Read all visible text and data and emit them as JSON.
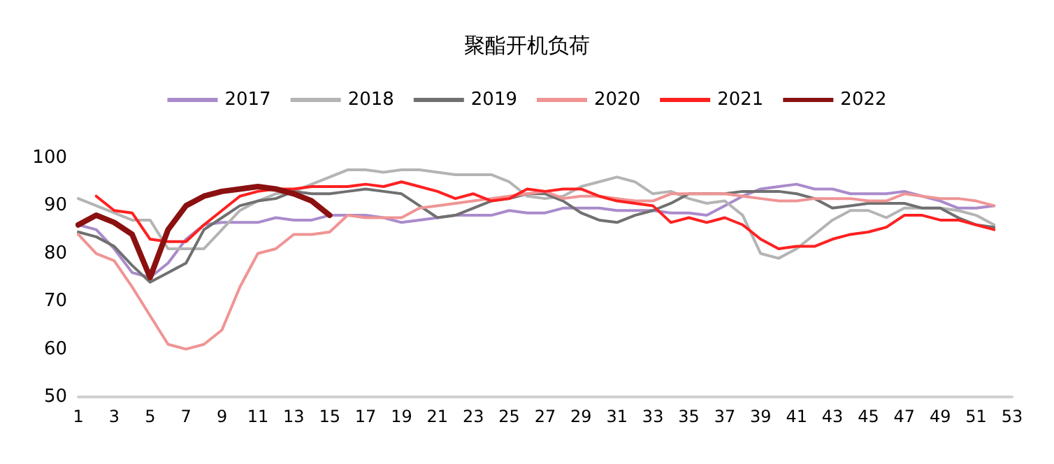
{
  "chart_data": {
    "type": "line",
    "title": "聚酯开机负荷",
    "legend": "top",
    "grid": false,
    "x": [
      1,
      2,
      3,
      4,
      5,
      6,
      7,
      8,
      9,
      10,
      11,
      12,
      13,
      14,
      15,
      16,
      17,
      18,
      19,
      20,
      21,
      22,
      23,
      24,
      25,
      26,
      27,
      28,
      29,
      30,
      31,
      32,
      33,
      34,
      35,
      36,
      37,
      38,
      39,
      40,
      41,
      42,
      43,
      44,
      45,
      46,
      47,
      48,
      49,
      50,
      51,
      52
    ],
    "xlim": [
      1,
      53
    ],
    "xticks": [
      1,
      3,
      5,
      7,
      9,
      11,
      13,
      15,
      17,
      19,
      21,
      23,
      25,
      27,
      29,
      31,
      33,
      35,
      37,
      39,
      41,
      43,
      45,
      47,
      49,
      51,
      53
    ],
    "ylim": [
      50,
      100
    ],
    "yticks": [
      50,
      60,
      70,
      80,
      90,
      100
    ],
    "series": [
      {
        "name": "2017",
        "color": "#a98bcb",
        "values": [
          86,
          85,
          81,
          76,
          75,
          78,
          83,
          86,
          86.5,
          86.5,
          86.5,
          87.5,
          87,
          87,
          88,
          88,
          88,
          87.5,
          86.5,
          87,
          87.5,
          88,
          88,
          88,
          89,
          88.5,
          88.5,
          89.5,
          89.5,
          89.5,
          89,
          89,
          89,
          88.5,
          88.5,
          88,
          90,
          92,
          93.5,
          94,
          94.5,
          93.5,
          93.5,
          92.5,
          92.5,
          92.5,
          93,
          92,
          91,
          89.5,
          89.5,
          90
        ]
      },
      {
        "name": "2018",
        "color": "#b4b4b4",
        "values": [
          91.5,
          90,
          88.5,
          87,
          87,
          81,
          81,
          81,
          85,
          89,
          91,
          92.5,
          93,
          94.5,
          96,
          97.5,
          97.5,
          97,
          97.5,
          97.5,
          97,
          96.5,
          96.5,
          96.5,
          95,
          92,
          91.5,
          92,
          94,
          95,
          96,
          95,
          92.5,
          93,
          91.5,
          90.5,
          91,
          88,
          80,
          79,
          81,
          84,
          87,
          89,
          89,
          87.5,
          89.5,
          89.5,
          89.5,
          89,
          88,
          86
        ]
      },
      {
        "name": "2019",
        "color": "#707070",
        "values": [
          84.5,
          83.5,
          81.5,
          77.5,
          74,
          76,
          78,
          85,
          87.5,
          90,
          91,
          91.5,
          93,
          92.5,
          92.5,
          93,
          93.5,
          93,
          92.5,
          90,
          87.5,
          88,
          89.5,
          91,
          91.5,
          92.5,
          92.5,
          91,
          88.5,
          87,
          86.5,
          88,
          89,
          90.5,
          92.5,
          92.5,
          92.5,
          93,
          93,
          93,
          92.5,
          91.5,
          89.5,
          90,
          90.5,
          90.5,
          90.5,
          89.5,
          89.5,
          87.5,
          86,
          85.5
        ]
      },
      {
        "name": "2020",
        "color": "#f09494",
        "values": [
          84,
          80,
          78.5,
          73,
          67,
          61,
          60,
          61,
          64,
          73,
          80,
          81,
          84,
          84,
          84.5,
          88,
          87.5,
          87.5,
          87.5,
          89.5,
          90,
          90.5,
          91,
          91.5,
          92,
          92.5,
          93,
          91.5,
          92,
          92,
          91.5,
          91,
          91,
          92.5,
          92.5,
          92.5,
          92.5,
          92,
          91.5,
          91,
          91,
          91.5,
          91.5,
          91.5,
          91,
          91,
          92.5,
          92,
          91.5,
          91.5,
          91,
          90
        ]
      },
      {
        "name": "2021",
        "color": "#ff2020",
        "values": [
          null,
          92,
          89,
          88.5,
          83,
          82.5,
          82.5,
          86,
          89,
          92,
          93,
          93.5,
          93.5,
          94,
          94,
          94,
          94.5,
          94,
          95,
          94,
          93,
          91.5,
          92.5,
          91,
          91.5,
          93.5,
          93,
          93.5,
          93.5,
          92,
          91,
          90.5,
          90,
          86.5,
          87.5,
          86.5,
          87.5,
          86,
          83,
          81,
          81.5,
          81.5,
          83,
          84,
          84.5,
          85.5,
          88,
          88,
          87,
          87,
          86,
          85
        ]
      },
      {
        "name": "2022",
        "color": "#8b1010",
        "x": [
          1,
          2,
          3,
          4,
          5,
          6,
          7,
          8,
          9,
          10,
          11,
          12,
          13,
          14,
          15
        ],
        "values": [
          86,
          88,
          86.5,
          84,
          75,
          85,
          90,
          92,
          93,
          93.5,
          94,
          93.5,
          92.5,
          91,
          88
        ]
      }
    ]
  }
}
